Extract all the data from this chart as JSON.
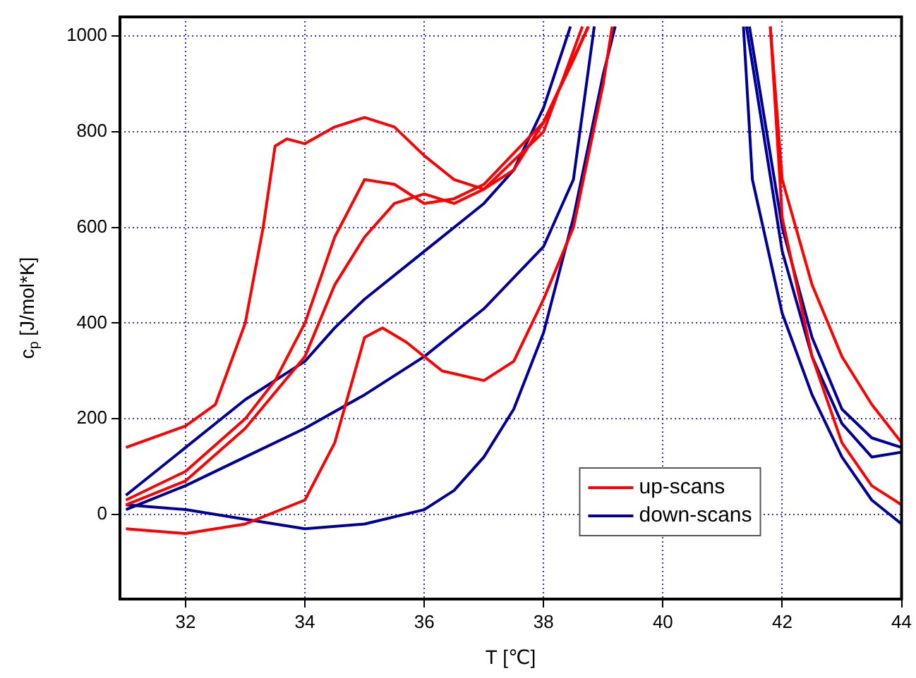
{
  "chart_data": {
    "type": "line",
    "xlabel": "T [℃]",
    "ylabel": "c$_{p}$ [J/mol*K]",
    "xlim": [
      30.9,
      44
    ],
    "ylim": [
      -177,
      1040
    ],
    "xticks": [
      32,
      34,
      36,
      38,
      40,
      42,
      44
    ],
    "yticks": [
      0,
      200,
      400,
      600,
      800,
      1000
    ],
    "grid": true,
    "legend": "bottom right",
    "marker": "none",
    "line_style": "solid",
    "series": [
      {
        "name": "up-scans",
        "color": "#ff0000",
        "x": [
          31,
          32,
          32.5,
          33,
          33.3,
          33.5,
          33.7,
          34,
          34.5,
          35,
          35.5,
          36,
          36.5,
          37,
          37.5,
          38,
          38.5,
          38.75,
          40,
          41.8,
          42,
          42.5,
          43,
          43.5,
          44
        ],
        "values": [
          140,
          185,
          230,
          400,
          600,
          770,
          785,
          775,
          810,
          830,
          810,
          750,
          700,
          680,
          720,
          820,
          950,
          1020,
          null,
          1020,
          700,
          480,
          330,
          230,
          150
        ]
      },
      {
        "color": "#ff0000",
        "x": [
          31,
          32,
          33,
          33.5,
          34,
          34.5,
          35,
          35.5,
          36,
          36.5,
          37,
          38,
          38.75
        ],
        "values": [
          30,
          90,
          200,
          280,
          400,
          580,
          700,
          690,
          650,
          660,
          690,
          820,
          1020
        ]
      },
      {
        "color": "#ff0000",
        "x": [
          31,
          32,
          33,
          34,
          34.5,
          35,
          35.5,
          36,
          36.5,
          37,
          38,
          38.65
        ],
        "values": [
          20,
          70,
          180,
          330,
          480,
          580,
          650,
          670,
          650,
          680,
          800,
          1020
        ]
      },
      {
        "color": "#ff0000",
        "x": [
          31,
          32,
          33,
          34,
          34.5,
          35,
          35.3,
          35.7,
          36.3,
          37,
          37.5,
          38,
          38.5,
          39,
          39.15,
          40,
          41.8,
          42,
          42.5,
          43,
          43.5,
          44
        ],
        "values": [
          -30,
          -40,
          -20,
          30,
          150,
          370,
          390,
          360,
          300,
          280,
          320,
          450,
          600,
          900,
          1020,
          null,
          1020,
          620,
          330,
          150,
          60,
          20
        ]
      },
      {
        "name": "down-scans",
        "color": "#000099",
        "x": [
          31,
          32,
          33,
          34,
          34.5,
          35,
          36,
          37,
          37.5,
          38,
          38.45,
          40,
          41.35,
          41.5,
          42,
          42.5,
          43,
          43.5,
          44
        ],
        "values": [
          40,
          140,
          240,
          320,
          390,
          450,
          550,
          650,
          720,
          850,
          1020,
          null,
          1020,
          700,
          420,
          250,
          120,
          30,
          -20
        ]
      },
      {
        "color": "#000099",
        "x": [
          31,
          32,
          33,
          34,
          35,
          36,
          37,
          38,
          38.5,
          38.85,
          40,
          41.4,
          42,
          42.5,
          43,
          43.5,
          44
        ],
        "values": [
          10,
          60,
          120,
          180,
          250,
          330,
          430,
          560,
          700,
          1020,
          null,
          1020,
          550,
          330,
          190,
          120,
          130
        ]
      },
      {
        "color": "#000099",
        "x": [
          31,
          32,
          33,
          34,
          35,
          36,
          36.5,
          37,
          37.5,
          38,
          38.5,
          39,
          39.2,
          40,
          41.45,
          42,
          42.5,
          43,
          43.5,
          44
        ],
        "values": [
          20,
          10,
          -10,
          -30,
          -20,
          10,
          50,
          120,
          220,
          380,
          620,
          920,
          1020,
          null,
          1020,
          600,
          370,
          220,
          160,
          140
        ]
      }
    ]
  }
}
